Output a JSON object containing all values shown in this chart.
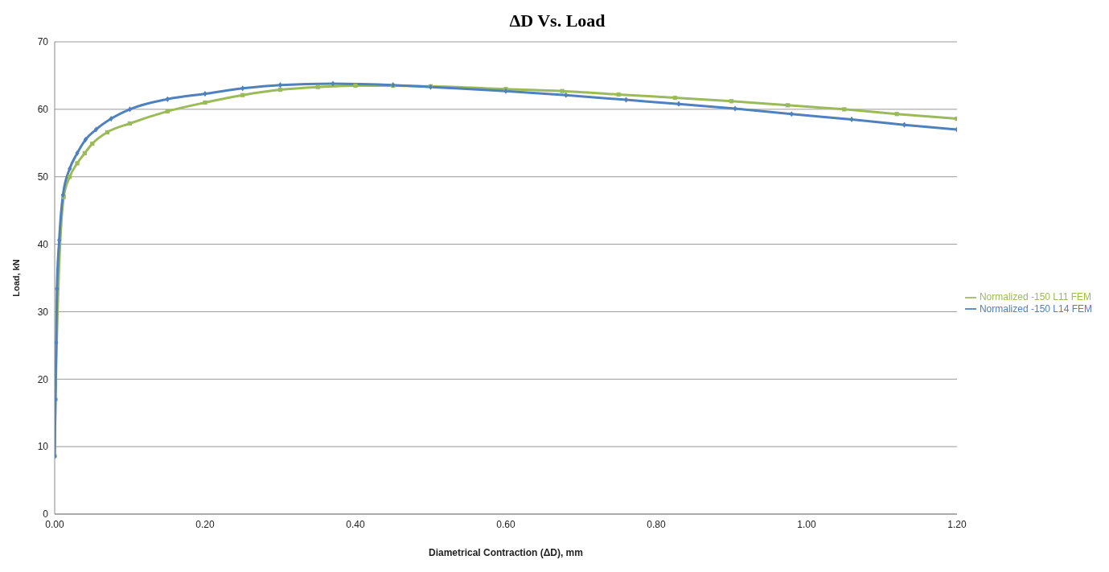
{
  "chart_data": {
    "type": "line",
    "title": "ΔD Vs. Load",
    "xlabel": "Diametrical Contraction (ΔD), mm",
    "ylabel": "Load, kN",
    "xlim": [
      0,
      1.2
    ],
    "xticks": [
      {
        "value": 0,
        "label": "0.00"
      },
      {
        "value": 0.2,
        "label": "0.20"
      },
      {
        "value": 0.4,
        "label": "0.40"
      },
      {
        "value": 0.6,
        "label": "0.60"
      },
      {
        "value": 0.8,
        "label": "0.80"
      },
      {
        "value": 1,
        "label": "1.00"
      },
      {
        "value": 1.2,
        "label": "1.20"
      }
    ],
    "ylim": [
      0,
      70
    ],
    "yticks": [
      0,
      10,
      20,
      30,
      40,
      50,
      60,
      70
    ],
    "grid": "y",
    "legend": "right",
    "line_style": "solid",
    "series": [
      {
        "name": "Normalized -150 L11 FEM",
        "color": "#9bbb59",
        "marker": "square",
        "x": [
          0,
          0.001,
          0.012,
          0.02,
          0.03,
          0.04,
          0.05,
          0.07,
          0.1,
          0.15,
          0.2,
          0.25,
          0.3,
          0.35,
          0.4,
          0.45,
          0.5,
          0.6,
          0.675,
          0.75,
          0.825,
          0.9,
          0.975,
          1.05,
          1.12,
          1.2
        ],
        "values": [
          8.6,
          17,
          47,
          50,
          52,
          53.5,
          54.9,
          56.6,
          57.9,
          59.7,
          61,
          62.1,
          62.9,
          63.3,
          63.5,
          63.5,
          63.4,
          63,
          62.7,
          62.2,
          61.7,
          61.2,
          60.6,
          60,
          59.3,
          58.6
        ]
      },
      {
        "name": "Normalized -150 L14 FEM",
        "color": "#4f81bd",
        "marker": "diamond",
        "x": [
          0,
          0.001,
          0.002,
          0.003,
          0.006,
          0.011,
          0.02,
          0.03,
          0.041,
          0.055,
          0.075,
          0.1,
          0.15,
          0.2,
          0.25,
          0.3,
          0.37,
          0.45,
          0.5,
          0.6,
          0.68,
          0.76,
          0.83,
          0.905,
          0.98,
          1.06,
          1.13,
          1.2
        ],
        "values": [
          8.6,
          17,
          25.4,
          33.4,
          40.6,
          47.3,
          51.2,
          53.5,
          55.5,
          57,
          58.6,
          60,
          61.5,
          62.3,
          63.1,
          63.6,
          63.8,
          63.6,
          63.3,
          62.7,
          62.1,
          61.4,
          60.8,
          60.1,
          59.3,
          58.5,
          57.7,
          57
        ]
      }
    ]
  }
}
